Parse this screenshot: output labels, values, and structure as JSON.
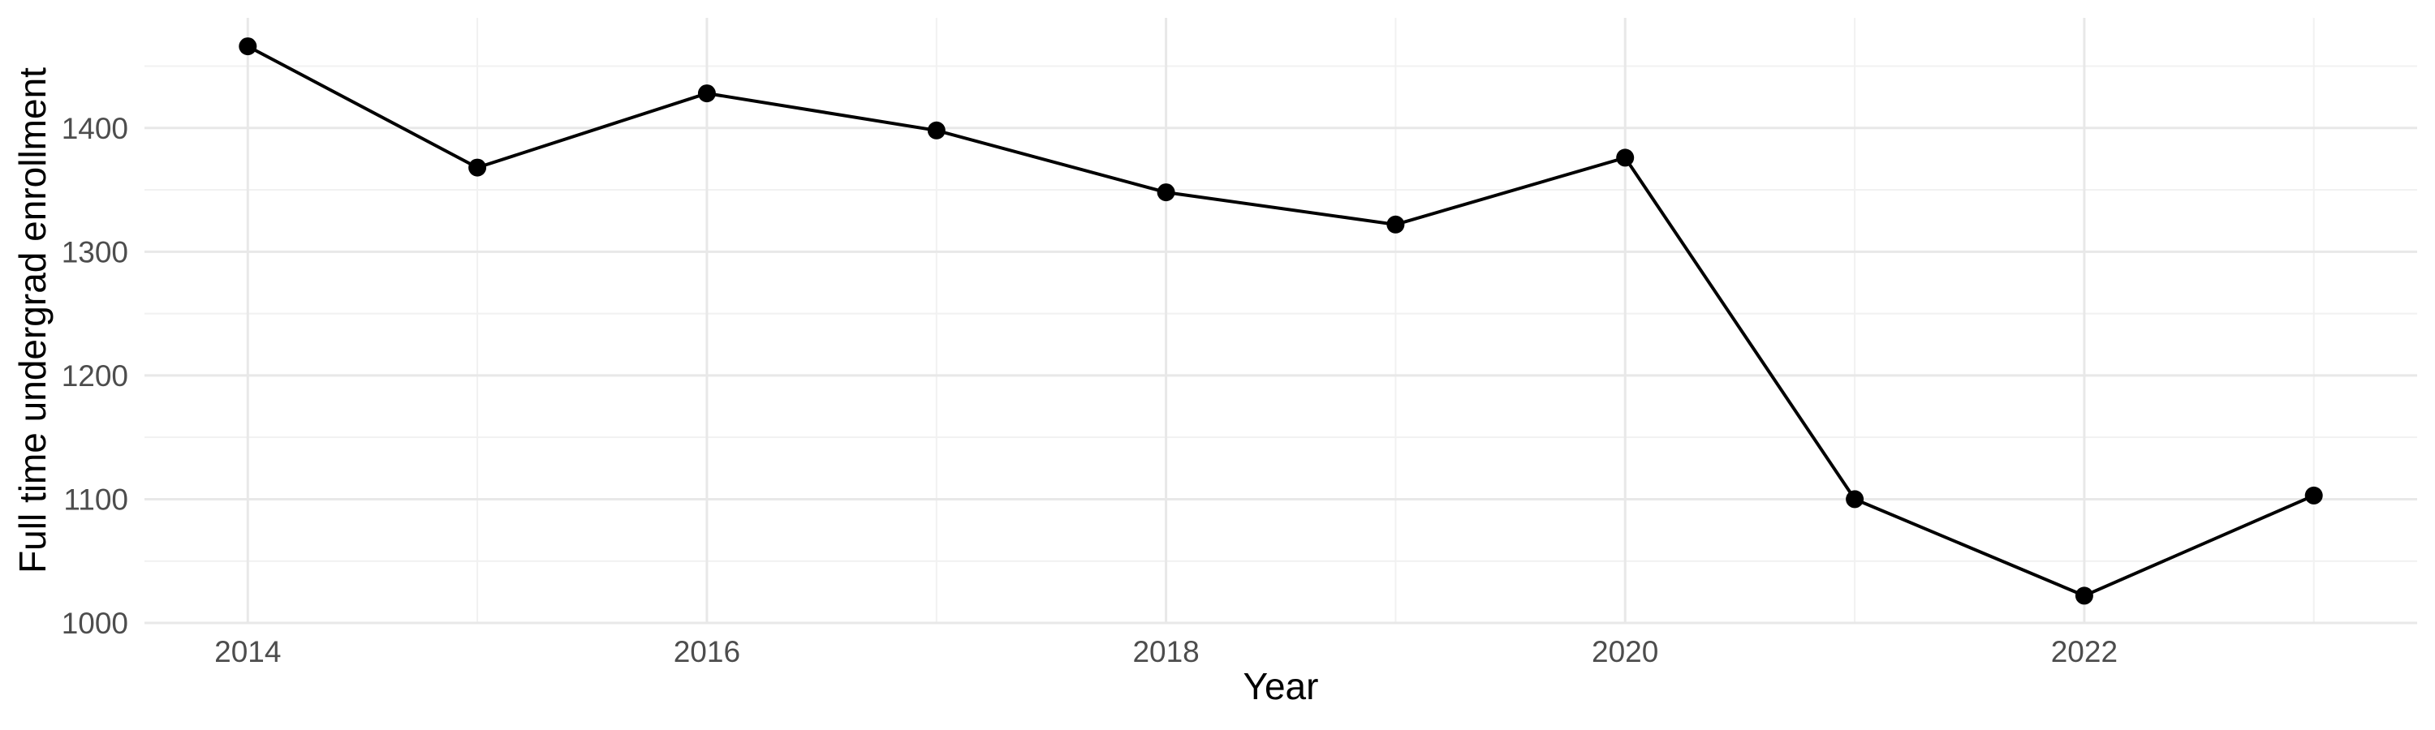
{
  "chart_data": {
    "type": "line",
    "title": "",
    "xlabel": "Year",
    "ylabel": "Full time undergrad enrollment",
    "x": [
      2014,
      2015,
      2016,
      2017,
      2018,
      2019,
      2020,
      2021,
      2022,
      2023
    ],
    "series": [
      {
        "name": "Full time undergrad enrollment",
        "values": [
          1466,
          1368,
          1428,
          1398,
          1348,
          1322,
          1376,
          1100,
          1022,
          1103
        ]
      }
    ],
    "x_tick_labels": [
      "2014",
      "2016",
      "2018",
      "2020",
      "2022"
    ],
    "x_ticks_major": [
      2014,
      2016,
      2018,
      2020,
      2022
    ],
    "x_ticks_minor": [
      2015,
      2017,
      2019,
      2021,
      2023
    ],
    "y_tick_labels": [
      "1000",
      "1100",
      "1200",
      "1300",
      "1400"
    ],
    "y_ticks_major": [
      1000,
      1100,
      1200,
      1300,
      1400
    ],
    "y_ticks_minor": [
      1050,
      1150,
      1250,
      1350,
      1450
    ],
    "xlim": [
      2013.55,
      2023.45
    ],
    "ylim": [
      1000,
      1489
    ],
    "grid": true,
    "legend": false,
    "colors": {
      "line": "#000000",
      "point": "#000000",
      "grid_major": "#e8e8e8",
      "grid_minor": "#f1f1f1",
      "tick_label": "#4d4d4d",
      "axis_title": "#000000",
      "background": "#ffffff"
    }
  }
}
